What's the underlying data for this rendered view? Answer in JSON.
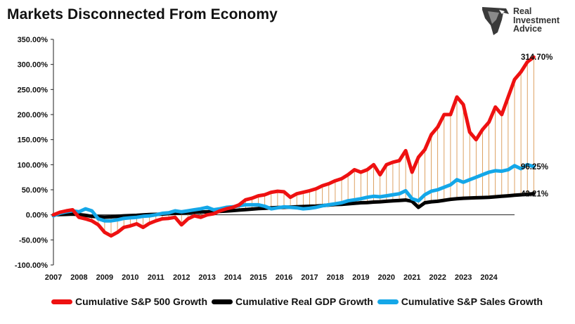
{
  "title": "Markets Disconnected From Economy",
  "logo": {
    "line1": "Real",
    "line2": "Investment",
    "line3": "Advice"
  },
  "colors": {
    "sp500": "#ee1111",
    "gdp": "#000000",
    "sales": "#14a7e8",
    "connector": "#d48a3c",
    "axis": "#222222"
  },
  "chart_data": {
    "type": "line",
    "ylim": [
      -100,
      350
    ],
    "yticks": [
      "-100.00%",
      "-50.00%",
      "0.00%",
      "50.00%",
      "100.00%",
      "150.00%",
      "200.00%",
      "250.00%",
      "300.00%",
      "350.00%"
    ],
    "ytick_values": [
      -100,
      -50,
      0,
      50,
      100,
      150,
      200,
      250,
      300,
      350
    ],
    "xticks": [
      "2007",
      "2008",
      "2009",
      "2010",
      "2011",
      "2012",
      "2013",
      "2014",
      "2015",
      "2016",
      "2017",
      "2018",
      "2019",
      "2020",
      "2021",
      "2022",
      "2023",
      "2024"
    ],
    "x_start": 2007.0,
    "x_step": 0.25,
    "series": [
      {
        "name": "Cumulative S&P 500 Growth",
        "end_label": "314.70%",
        "values": [
          0,
          5,
          8,
          10,
          -5,
          -8,
          -12,
          -20,
          -35,
          -42,
          -35,
          -25,
          -22,
          -18,
          -25,
          -17,
          -12,
          -8,
          -7,
          -5,
          -20,
          -8,
          -2,
          -5,
          0,
          2,
          8,
          12,
          15,
          20,
          30,
          33,
          38,
          40,
          45,
          47,
          46,
          35,
          42,
          45,
          48,
          52,
          58,
          62,
          68,
          72,
          80,
          90,
          85,
          90,
          100,
          80,
          100,
          105,
          108,
          128,
          85,
          115,
          130,
          160,
          175,
          200,
          200,
          235,
          220,
          165,
          150,
          170,
          185,
          215,
          200,
          235,
          270,
          285,
          305,
          314.7
        ]
      },
      {
        "name": "Cumulative Real GDP Growth",
        "end_label": "42.21%",
        "values": [
          0,
          0.5,
          1,
          1.5,
          0.5,
          -1,
          -3,
          -4,
          -4.5,
          -4,
          -3,
          -2,
          -1.5,
          -1,
          0,
          0.5,
          1,
          1.5,
          2.5,
          3,
          4,
          4.5,
          5,
          5.5,
          6,
          6.5,
          7,
          7.5,
          8.5,
          9.5,
          10.5,
          11.5,
          12.5,
          13,
          14,
          14.5,
          15,
          15.5,
          16,
          16.5,
          17,
          17.5,
          18.5,
          19.5,
          20.5,
          21,
          22,
          23,
          24,
          24.5,
          25.5,
          26,
          27,
          28,
          28.5,
          29.5,
          27,
          15,
          24,
          26,
          27,
          29,
          31,
          32,
          33,
          33.5,
          34,
          34.5,
          35,
          36,
          37,
          38,
          39,
          40,
          41,
          42.21
        ]
      },
      {
        "name": "Cumulative S&P Sales Growth",
        "end_label": "96.25%",
        "values": [
          -2,
          3,
          6,
          8,
          6,
          12,
          8,
          -8,
          -12,
          -12,
          -10,
          -7,
          -6,
          -5,
          -3,
          -2,
          0,
          3,
          4,
          8,
          6,
          8,
          10,
          12,
          15,
          10,
          12,
          15,
          16,
          18,
          20,
          20,
          20,
          17,
          12,
          14,
          16,
          15,
          14,
          12,
          13,
          15,
          18,
          20,
          22,
          24,
          28,
          30,
          32,
          35,
          37,
          36,
          38,
          40,
          42,
          48,
          32,
          28,
          40,
          47,
          50,
          55,
          60,
          70,
          65,
          70,
          75,
          80,
          85,
          88,
          87,
          90,
          98,
          92,
          100,
          96.25
        ]
      }
    ]
  },
  "legend": [
    {
      "label": "Cumulative S&P 500 Growth"
    },
    {
      "label": "Cumulative Real GDP Growth"
    },
    {
      "label": "Cumulative S&P Sales Growth"
    }
  ]
}
